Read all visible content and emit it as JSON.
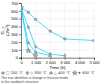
{
  "chart_data": {
    "type": "line",
    "x_label": "Time (h)",
    "y_label": "G_c\n(J/m²)",
    "xlim": [
      0,
      5000
    ],
    "ylim": [
      0,
      700
    ],
    "xticks": [
      0,
      {
        "value": 1000,
        "label": "1 000"
      },
      {
        "value": 2000,
        "label": "2 000"
      },
      {
        "value": 3000,
        "label": "3 000"
      },
      {
        "value": 4000,
        "label": "4 000"
      },
      {
        "value": 5000,
        "label": "5 000"
      }
    ],
    "yticks": [
      0,
      100,
      200,
      300,
      400,
      500,
      600,
      700
    ],
    "grid": true,
    "legend": "bottom",
    "color": "#00ccff",
    "series": [
      {
        "name": "□ 200 °C",
        "color": "#00ccff",
        "marker": "square",
        "x": [
          0,
          500,
          1000,
          2000,
          3000,
          5000
        ],
        "values": [
          640,
          580,
          490,
          340,
          240,
          220
        ]
      },
      {
        "name": "◇ 300 °C",
        "color": "#00ccff",
        "marker": "diamond",
        "x": [
          0,
          500,
          1000,
          2000,
          3000
        ],
        "values": [
          640,
          390,
          140,
          45,
          25
        ]
      },
      {
        "name": "△ 400 °C",
        "color": "#00ccff",
        "marker": "triangle",
        "x": [
          0,
          500,
          1000,
          2000
        ],
        "values": [
          640,
          190,
          70,
          25
        ]
      },
      {
        "name": "★ 600 °C",
        "color": "#00ccff",
        "marker": "star",
        "x": [
          0,
          500,
          1000
        ],
        "values": [
          640,
          90,
          25
        ]
      }
    ],
    "annotations": [
      "The star identifies a change in fracture mode",
      "in the sandwich structure"
    ]
  }
}
